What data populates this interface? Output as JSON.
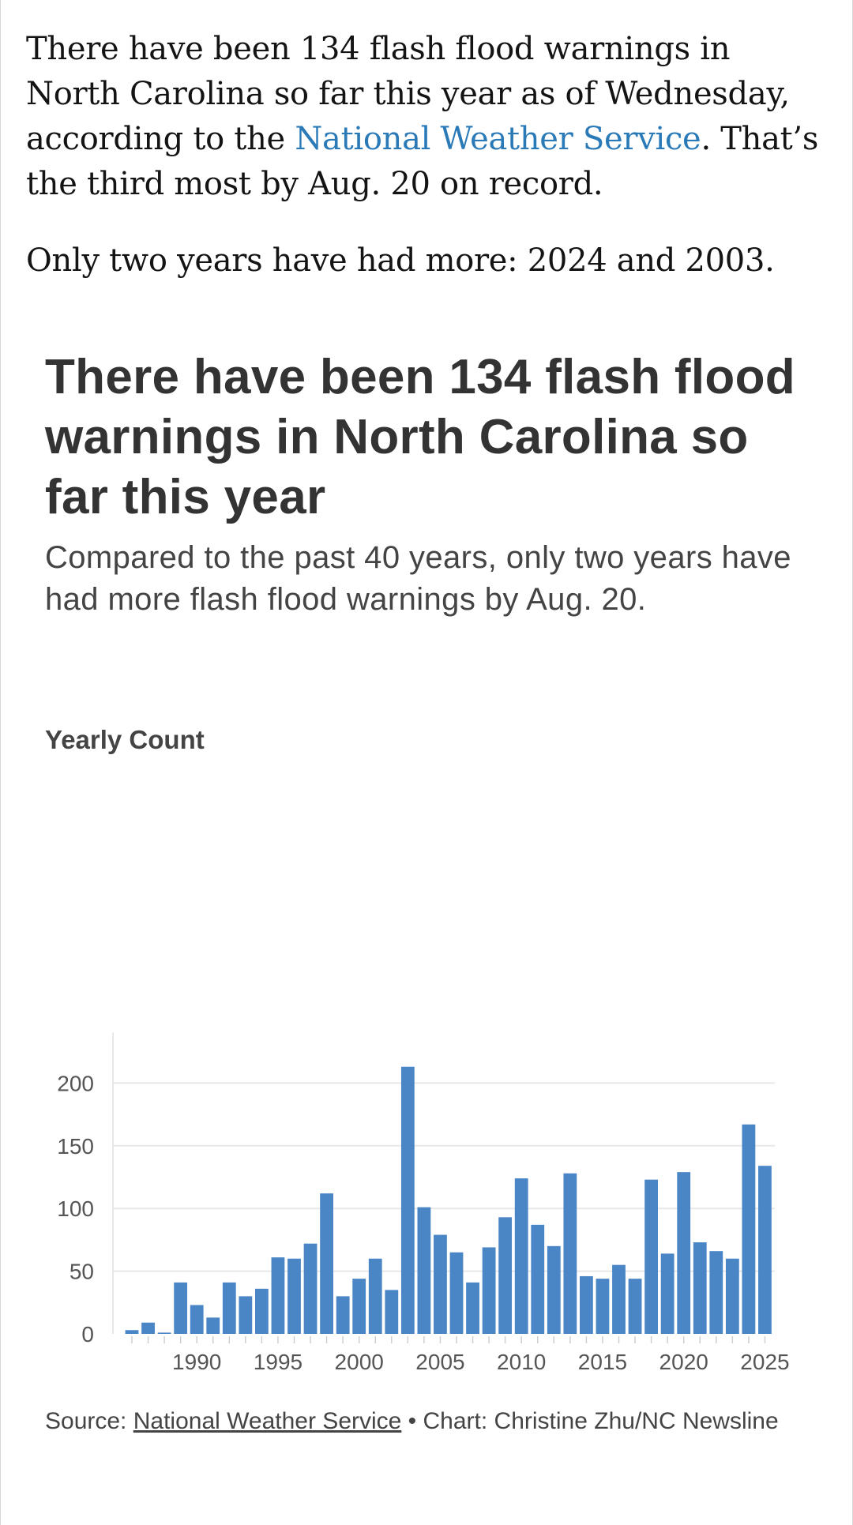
{
  "article": {
    "p1_before": "There have been 134 flash flood warnings in North Carolina so far this year as of Wednesday, according to the ",
    "p1_link": "National Weather Service",
    "p1_after": ". That’s the third most by Aug. 20 on record.",
    "p2": "Only two years have had more: 2024 and 2003."
  },
  "chart_header": {
    "title": "There have been 134 flash flood warnings in North Carolina so far this year",
    "subtitle": "Compared to the past 40 years, only two years have had more flash flood warnings by Aug. 20."
  },
  "footer": {
    "source_prefix": "Source: ",
    "source_link": "National Weather Service",
    "credit": " • Chart: Christine Zhu/NC Newsline"
  },
  "colors": {
    "bar": "#4a86c6",
    "link": "#2a7ab8",
    "grid": "#e8e8e8"
  },
  "chart_data": {
    "type": "bar",
    "ylabel": "Yearly Count",
    "ylim": [
      0,
      220
    ],
    "yticks": [
      0,
      50,
      100,
      150,
      200
    ],
    "xticks": [
      1990,
      1995,
      2000,
      2005,
      2010,
      2015,
      2020,
      2025
    ],
    "grid": true,
    "x": [
      1986,
      1987,
      1988,
      1989,
      1990,
      1991,
      1992,
      1993,
      1994,
      1995,
      1996,
      1997,
      1998,
      1999,
      2000,
      2001,
      2002,
      2003,
      2004,
      2005,
      2006,
      2007,
      2008,
      2009,
      2010,
      2011,
      2012,
      2013,
      2014,
      2015,
      2016,
      2017,
      2018,
      2019,
      2020,
      2021,
      2022,
      2023,
      2024,
      2025
    ],
    "values": [
      3,
      9,
      1,
      41,
      23,
      13,
      41,
      30,
      36,
      61,
      60,
      72,
      112,
      30,
      44,
      60,
      35,
      213,
      101,
      79,
      65,
      41,
      69,
      93,
      124,
      87,
      70,
      128,
      46,
      44,
      55,
      44,
      123,
      64,
      129,
      73,
      66,
      60,
      167,
      134
    ]
  }
}
